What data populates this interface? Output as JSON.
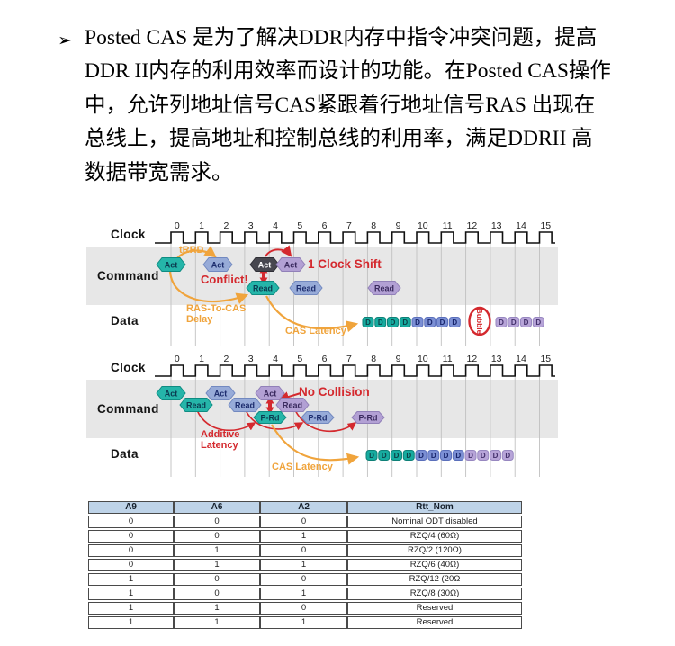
{
  "paragraph": {
    "bullet": "➢",
    "lines": [
      "Posted CAS 是为了解决DDR内存中指令冲突问题，提高",
      "DDR II内存的利用效率而设计的功能。在Posted CAS操作",
      "中，允许列地址信号CAS紧跟着行地址信号RAS 出现在",
      "总线上，提高地址和控制总线的利用率，满足DDRII 高",
      "数据带宽需求。"
    ]
  },
  "colors": {
    "teal": "#25b5a9",
    "blue": "#97abd8",
    "dark": "#47474f",
    "purple": "#b2a0d4",
    "orange": "#f0a43c",
    "red": "#d4292e",
    "band": "#e7e7e7",
    "grid": "#c0c0c0",
    "table_header_bg": "#bed3e8"
  },
  "diagram1": {
    "row_labels": {
      "clock": "Clock",
      "command": "Command",
      "data": "Data"
    },
    "ticks": [
      "0",
      "1",
      "2",
      "3",
      "4",
      "5",
      "6",
      "7",
      "8",
      "9",
      "10",
      "11",
      "12",
      "13",
      "14",
      "15"
    ],
    "tokens": [
      {
        "label": "Act",
        "color": "teal"
      },
      {
        "label": "Act",
        "color": "blue"
      },
      {
        "label": "Act",
        "color": "dark"
      },
      {
        "label": "Act",
        "color": "purple"
      },
      {
        "label": "Read",
        "color": "teal"
      },
      {
        "label": "Read",
        "color": "blue"
      },
      {
        "label": "Read",
        "color": "purple"
      }
    ],
    "annotations": {
      "trrd": "tRRD",
      "conflict": "Conflict!",
      "clock_shift": "1 Clock Shift",
      "ras_line1": "RAS-To-CAS",
      "ras_line2": "Delay",
      "cas_latency": "CAS Latency"
    },
    "d_label": "D",
    "data_burst": [
      {
        "color": "teal",
        "count": 4
      },
      {
        "color": "blue",
        "count": 4
      },
      {
        "bubble": "Bubble"
      },
      {
        "color": "purple",
        "count": 4
      }
    ]
  },
  "diagram2": {
    "row_labels": {
      "clock": "Clock",
      "command": "Command",
      "data": "Data"
    },
    "ticks": [
      "0",
      "1",
      "2",
      "3",
      "4",
      "5",
      "6",
      "7",
      "8",
      "9",
      "10",
      "11",
      "12",
      "13",
      "14",
      "15"
    ],
    "tokens": [
      {
        "label": "Act",
        "color": "teal"
      },
      {
        "label": "Act",
        "color": "blue"
      },
      {
        "label": "Act",
        "color": "purple"
      },
      {
        "label": "Read",
        "color": "teal"
      },
      {
        "label": "Read",
        "color": "blue"
      },
      {
        "label": "Read",
        "color": "purple"
      },
      {
        "label": "P-Rd",
        "color": "teal"
      },
      {
        "label": "P-Rd",
        "color": "blue"
      },
      {
        "label": "P-Rd",
        "color": "purple"
      }
    ],
    "annotations": {
      "no_collision": "No Collision",
      "additive_line1": "Additive",
      "additive_line2": "Latency",
      "cas_latency": "CAS Latency"
    },
    "d_label": "D",
    "data_burst": [
      {
        "color": "teal",
        "count": 4
      },
      {
        "color": "blue",
        "count": 4
      },
      {
        "color": "purple",
        "count": 4
      }
    ]
  },
  "table": {
    "headers": [
      "A9",
      "A6",
      "A2",
      "Rtt_Nom"
    ],
    "rows": [
      [
        "0",
        "0",
        "0",
        "Nominal ODT disabled"
      ],
      [
        "0",
        "0",
        "1",
        "RZQ/4 (60Ω)"
      ],
      [
        "0",
        "1",
        "0",
        "RZQ/2 (120Ω)"
      ],
      [
        "0",
        "1",
        "1",
        "RZQ/6 (40Ω)"
      ],
      [
        "1",
        "0",
        "0",
        "RZQ/12 (20Ω"
      ],
      [
        "1",
        "0",
        "1",
        "RZQ/8 (30Ω)"
      ],
      [
        "1",
        "1",
        "0",
        "Reserved"
      ],
      [
        "1",
        "1",
        "1",
        "Reserved"
      ]
    ]
  }
}
